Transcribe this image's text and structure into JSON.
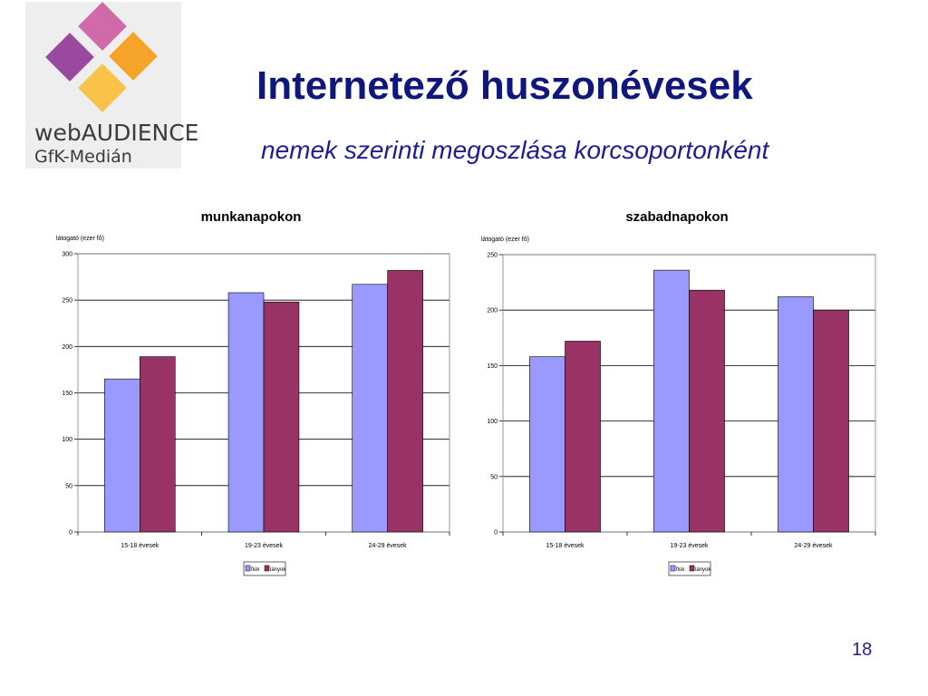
{
  "logo": {
    "line1": "webAUDIENCE",
    "line2": "GfK-Medián",
    "colors": [
      "#d06aa8",
      "#f6a32a",
      "#9a4a9e",
      "#f9c34a"
    ]
  },
  "title": "Internetező huszonévesek",
  "subtitle": "nemek szerinti megoszlása korcsoportonként",
  "page_number": "18",
  "colors": {
    "fiuk": "#9999ff",
    "lanyok": "#993366"
  },
  "chart_data": [
    {
      "type": "bar",
      "title": "munkanapokon",
      "ylabel": "látogató (ezer fő)",
      "categories": [
        "15-18 évesek",
        "19-23 évesek",
        "24-29 évesek"
      ],
      "series": [
        {
          "name": "fiúk",
          "values": [
            165,
            258,
            267
          ]
        },
        {
          "name": "lányok",
          "values": [
            189,
            248,
            282
          ]
        }
      ],
      "ylim": [
        0,
        300
      ],
      "yticks": [
        0,
        50,
        100,
        150,
        200,
        250,
        300
      ],
      "grid": true,
      "legend": "bottom"
    },
    {
      "type": "bar",
      "title": "szabadnapokon",
      "ylabel": "látogató (ezer fő)",
      "categories": [
        "15-18 évesek",
        "19-23 évesek",
        "24-29 évesek"
      ],
      "series": [
        {
          "name": "fiúk",
          "values": [
            158,
            236,
            212
          ]
        },
        {
          "name": "lányok",
          "values": [
            172,
            218,
            200
          ]
        }
      ],
      "ylim": [
        0,
        250
      ],
      "yticks": [
        0,
        50,
        100,
        150,
        200,
        250
      ],
      "grid": true,
      "legend": "bottom"
    }
  ]
}
